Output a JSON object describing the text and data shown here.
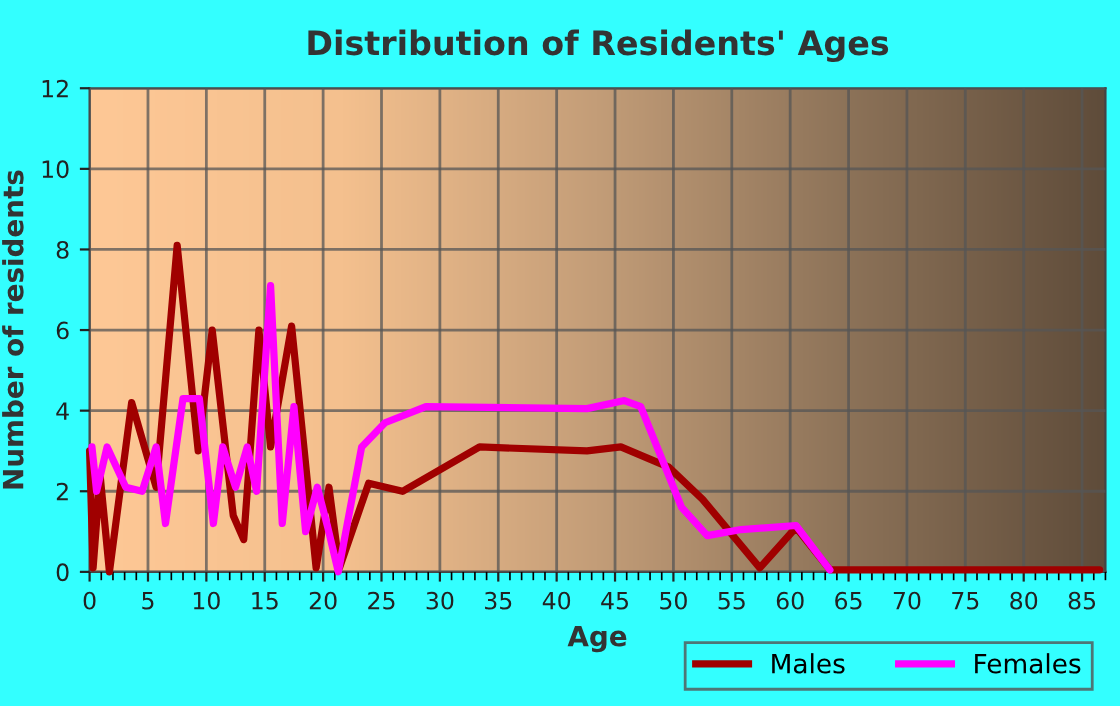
{
  "chart_data": {
    "type": "line",
    "title": "Distribution of Residents' Ages",
    "xlabel": "Age",
    "ylabel": "Number of residents",
    "xlim": [
      0,
      87
    ],
    "xticks": [
      0,
      5,
      10,
      15,
      20,
      25,
      30,
      35,
      40,
      45,
      50,
      55,
      60,
      65,
      70,
      75,
      80,
      85
    ],
    "ylim": [
      0,
      12
    ],
    "yticks": [
      0,
      2,
      4,
      6,
      8,
      10,
      12
    ],
    "grid": true,
    "legend": "bottom right",
    "marker": "none",
    "line_style": "solid",
    "series": [
      {
        "name": "Males",
        "color": "#a00000",
        "x": [
          0,
          0.3,
          0.9,
          1.7,
          3.6,
          5.7,
          7.5,
          9.3,
          10.5,
          12.3,
          13.2,
          14.5,
          15.5,
          17.3,
          19.4,
          20.5,
          21.4,
          23.9,
          26.8,
          33.4,
          42.6,
          45.5,
          49.6,
          52.5,
          57.4,
          60.5,
          63.4,
          86.5
        ],
        "values": [
          3.0,
          0.1,
          2.4,
          0,
          4.2,
          2.1,
          8.1,
          3.0,
          6.0,
          1.4,
          0.8,
          6.0,
          3.1,
          6.1,
          0.1,
          2.1,
          0.1,
          2.2,
          2.0,
          3.1,
          3.0,
          3.1,
          2.6,
          1.8,
          0.1,
          1.1,
          0.05,
          0.05
        ]
      },
      {
        "name": "Females",
        "color": "#ff00ff",
        "x": [
          0.2,
          0.6,
          1.5,
          3.1,
          4.5,
          5.7,
          6.5,
          8.0,
          9.4,
          10.6,
          11.4,
          12.5,
          13.5,
          14.3,
          15.5,
          16.5,
          17.5,
          18.5,
          19.5,
          20.4,
          21.3,
          23.3,
          25.3,
          28.8,
          42.6,
          45.8,
          47.2,
          50.7,
          52.9,
          55.8,
          60.5,
          63.4
        ],
        "values": [
          3.1,
          2.0,
          3.1,
          2.1,
          2.0,
          3.1,
          1.2,
          4.3,
          4.3,
          1.2,
          3.1,
          2.1,
          3.1,
          2.0,
          7.1,
          1.2,
          4.1,
          1.0,
          2.1,
          1.1,
          0,
          3.1,
          3.7,
          4.1,
          4.05,
          4.25,
          4.1,
          1.6,
          0.9,
          1.05,
          1.15,
          0.05
        ]
      }
    ]
  }
}
